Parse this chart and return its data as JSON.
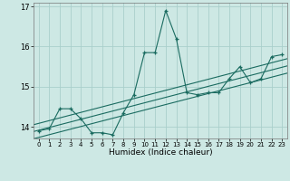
{
  "title": "",
  "xlabel": "Humidex (Indice chaleur)",
  "ylabel": "",
  "background_color": "#cde8e4",
  "grid_color": "#aacfcb",
  "line_color": "#1a6b60",
  "xlim": [
    -0.5,
    23.5
  ],
  "ylim": [
    13.7,
    17.1
  ],
  "yticks": [
    14,
    15,
    16,
    17
  ],
  "xticks": [
    0,
    1,
    2,
    3,
    4,
    5,
    6,
    7,
    8,
    9,
    10,
    11,
    12,
    13,
    14,
    15,
    16,
    17,
    18,
    19,
    20,
    21,
    22,
    23
  ],
  "scatter_x": [
    0,
    1,
    2,
    3,
    4,
    5,
    6,
    7,
    8,
    9,
    10,
    11,
    12,
    13,
    14,
    15,
    16,
    17,
    18,
    19,
    20,
    21,
    22,
    23
  ],
  "scatter_y": [
    13.9,
    13.95,
    14.45,
    14.45,
    14.2,
    13.85,
    13.85,
    13.8,
    14.35,
    14.8,
    15.85,
    15.85,
    16.9,
    16.2,
    14.85,
    14.8,
    14.85,
    14.85,
    15.2,
    15.5,
    15.1,
    15.2,
    15.75,
    15.8
  ],
  "reg_lines": [
    [
      13.88,
      15.52
    ],
    [
      13.7,
      15.34
    ],
    [
      14.05,
      15.7
    ]
  ]
}
